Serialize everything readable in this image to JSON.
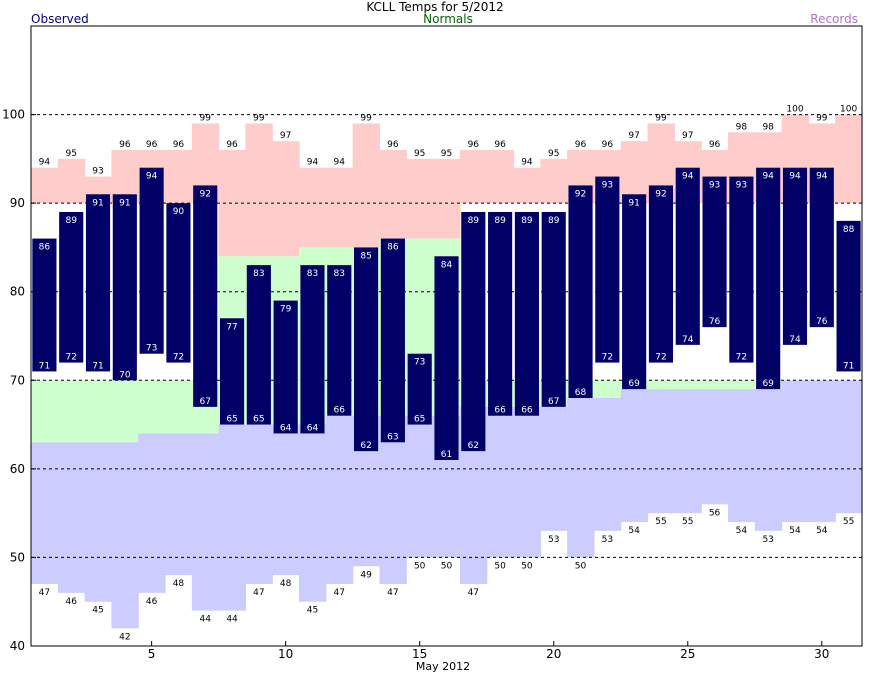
{
  "chart_data": {
    "type": "bar",
    "title": "KCLL Temps for 5/2012",
    "legend": {
      "observed": "Observed",
      "normals": "Normals",
      "records": "Records"
    },
    "xlabel": "May 2012",
    "ylim": [
      40,
      110
    ],
    "y_ticks": [
      40,
      50,
      60,
      70,
      80,
      90,
      100
    ],
    "x_ticks": [
      5,
      10,
      15,
      20,
      25,
      30
    ],
    "gridlines_at": [
      50,
      60,
      70,
      80,
      90,
      100
    ],
    "days": [
      1,
      2,
      3,
      4,
      5,
      6,
      7,
      8,
      9,
      10,
      11,
      12,
      13,
      14,
      15,
      16,
      17,
      18,
      19,
      20,
      21,
      22,
      23,
      24,
      25,
      26,
      27,
      28,
      29,
      30,
      31
    ],
    "series": [
      {
        "name": "Observed",
        "role": "observed_high",
        "values": [
          86,
          89,
          91,
          91,
          94,
          90,
          92,
          77,
          83,
          79,
          83,
          83,
          85,
          86,
          73,
          84,
          89,
          89,
          89,
          89,
          92,
          93,
          91,
          92,
          94,
          93,
          93,
          94,
          94,
          94,
          88
        ]
      },
      {
        "name": "Observed",
        "role": "observed_low",
        "values": [
          71,
          72,
          71,
          70,
          73,
          72,
          67,
          65,
          65,
          64,
          64,
          66,
          62,
          63,
          65,
          61,
          62,
          66,
          66,
          67,
          68,
          72,
          69,
          72,
          74,
          76,
          72,
          69,
          74,
          76,
          71
        ]
      },
      {
        "name": "Normals",
        "role": "normal_high",
        "values": [
          null,
          null,
          null,
          null,
          null,
          null,
          null,
          84,
          84,
          84,
          85,
          85,
          85,
          86,
          86,
          86,
          null,
          null,
          null,
          null,
          null,
          null,
          null,
          null,
          null,
          null,
          null,
          null,
          null,
          null,
          null
        ]
      },
      {
        "name": "Normals",
        "role": "normal_low",
        "values": [
          63,
          63,
          63,
          63,
          64,
          64,
          64,
          65,
          65,
          65,
          65,
          66,
          66,
          66,
          66,
          66,
          67,
          67,
          67,
          67,
          68,
          68,
          69,
          69,
          69,
          69,
          69,
          69,
          70,
          70,
          70
        ]
      },
      {
        "name": "Records",
        "role": "record_high",
        "values": [
          94,
          95,
          93,
          96,
          96,
          96,
          99,
          96,
          99,
          97,
          94,
          94,
          99,
          96,
          95,
          95,
          96,
          96,
          94,
          95,
          96,
          96,
          97,
          99,
          97,
          96,
          98,
          98,
          100,
          99,
          100
        ]
      },
      {
        "name": "Records",
        "role": "record_low",
        "values": [
          47,
          46,
          45,
          42,
          46,
          48,
          44,
          44,
          47,
          48,
          45,
          47,
          49,
          47,
          50,
          50,
          47,
          50,
          50,
          53,
          50,
          53,
          54,
          55,
          55,
          56,
          54,
          53,
          54,
          54,
          55
        ]
      }
    ],
    "colors": {
      "observed": "#000066",
      "normals": "#ccffcc",
      "records_high": "#ffcccc",
      "records_low": "#ccccff",
      "label_text": "#ffffff",
      "record_label_text": "#000000"
    }
  }
}
